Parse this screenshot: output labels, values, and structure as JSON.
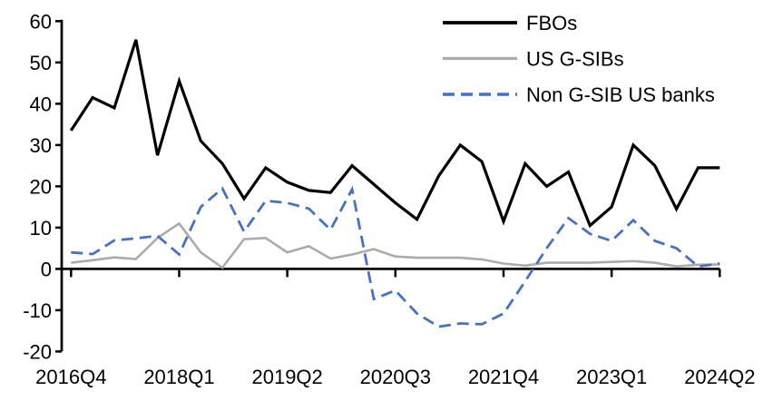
{
  "chart_data": {
    "type": "line",
    "title": "",
    "xlabel": "",
    "ylabel": "",
    "grid": "off",
    "legend_position": "top-right",
    "ylim": [
      -20,
      60
    ],
    "y_tick_step": 10,
    "y_tick_labels": [
      "-20",
      "-10",
      "0",
      "10",
      "20",
      "30",
      "40",
      "50",
      "60"
    ],
    "x_tick_labels": [
      "2016Q4",
      "2018Q1",
      "2019Q2",
      "2020Q3",
      "2021Q4",
      "2023Q1",
      "2024Q2"
    ],
    "x_tick_indices": [
      0,
      5,
      10,
      15,
      20,
      25,
      30
    ],
    "categories": [
      "2016Q4",
      "2017Q1",
      "2017Q2",
      "2017Q3",
      "2017Q4",
      "2018Q1",
      "2018Q2",
      "2018Q3",
      "2018Q4",
      "2019Q1",
      "2019Q2",
      "2019Q3",
      "2019Q4",
      "2020Q1",
      "2020Q2",
      "2020Q3",
      "2020Q4",
      "2021Q1",
      "2021Q2",
      "2021Q3",
      "2021Q4",
      "2022Q1",
      "2022Q2",
      "2022Q3",
      "2022Q4",
      "2023Q1",
      "2023Q2",
      "2023Q3",
      "2023Q4",
      "2024Q1",
      "2024Q2"
    ],
    "series": [
      {
        "name": "FBOs",
        "color": "#000000",
        "style": "solid",
        "width": 3.2,
        "values": [
          33.5,
          41.5,
          39,
          55.5,
          27.5,
          45.5,
          31,
          25.5,
          17,
          24.5,
          21,
          19,
          18.5,
          25,
          20.5,
          16,
          12,
          22.5,
          30,
          26,
          11.5,
          25.5,
          20,
          23.5,
          10.5,
          15,
          30,
          25,
          14.5,
          24.5,
          24.5
        ]
      },
      {
        "name": "US G-SIBs",
        "color": "#ABABAB",
        "style": "solid",
        "width": 2.6,
        "values": [
          1.5,
          2.1,
          2.8,
          2.4,
          7.5,
          11,
          4,
          0.3,
          7.2,
          7.5,
          4,
          5.5,
          2.5,
          3.5,
          4.8,
          3,
          2.7,
          2.7,
          2.7,
          2.3,
          1.3,
          0.8,
          1.5,
          1.5,
          1.5,
          1.7,
          1.9,
          1.5,
          0.6,
          1.0,
          1.1
        ]
      },
      {
        "name": "Non G-SIB US banks",
        "color": "#4472C4",
        "style": "dashed",
        "width": 2.8,
        "values": [
          4,
          3.6,
          6.9,
          7.4,
          8,
          3.5,
          15,
          19.5,
          9,
          16.5,
          16,
          14.6,
          9.5,
          19.3,
          -7.3,
          -5.2,
          -10.8,
          -14,
          -13.2,
          -13.4,
          -10.8,
          -3,
          5,
          12.3,
          8.5,
          6.8,
          11.8,
          6.8,
          5,
          0.6,
          1.3
        ]
      }
    ],
    "axis_color": "#000000"
  }
}
